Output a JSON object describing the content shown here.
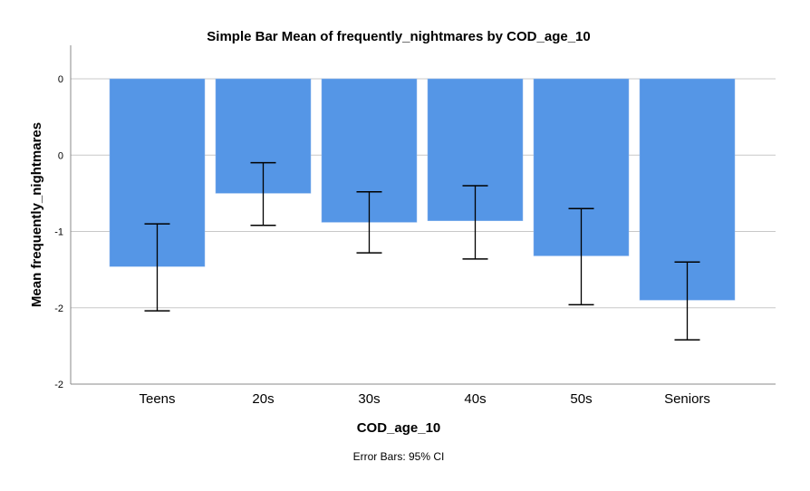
{
  "chart_data": {
    "type": "bar",
    "title": "Simple Bar Mean of frequently_nightmares by COD_age_10",
    "xlabel": "COD_age_10",
    "ylabel": "Mean frequently_nightmares",
    "footnote": "Error Bars: 95% CI",
    "categories": [
      "Teens",
      "20s",
      "30s",
      "40s",
      "50s",
      "Seniors"
    ],
    "values": [
      -1.23,
      -0.75,
      -0.94,
      -0.93,
      -1.16,
      -1.45
    ],
    "error_low": [
      -1.52,
      -0.96,
      -1.14,
      -1.18,
      -1.48,
      -1.71
    ],
    "error_high": [
      -0.95,
      -0.55,
      -0.74,
      -0.7,
      -0.85,
      -1.2
    ],
    "ylim": [
      -2.0,
      0.2
    ],
    "yticks": [
      0,
      -0.5,
      -1.0,
      -1.5,
      -2.0
    ],
    "ytick_labels": [
      "0",
      "0",
      "-1",
      "-2",
      "-2"
    ],
    "grid": true,
    "bar_color": "#5596e6"
  }
}
